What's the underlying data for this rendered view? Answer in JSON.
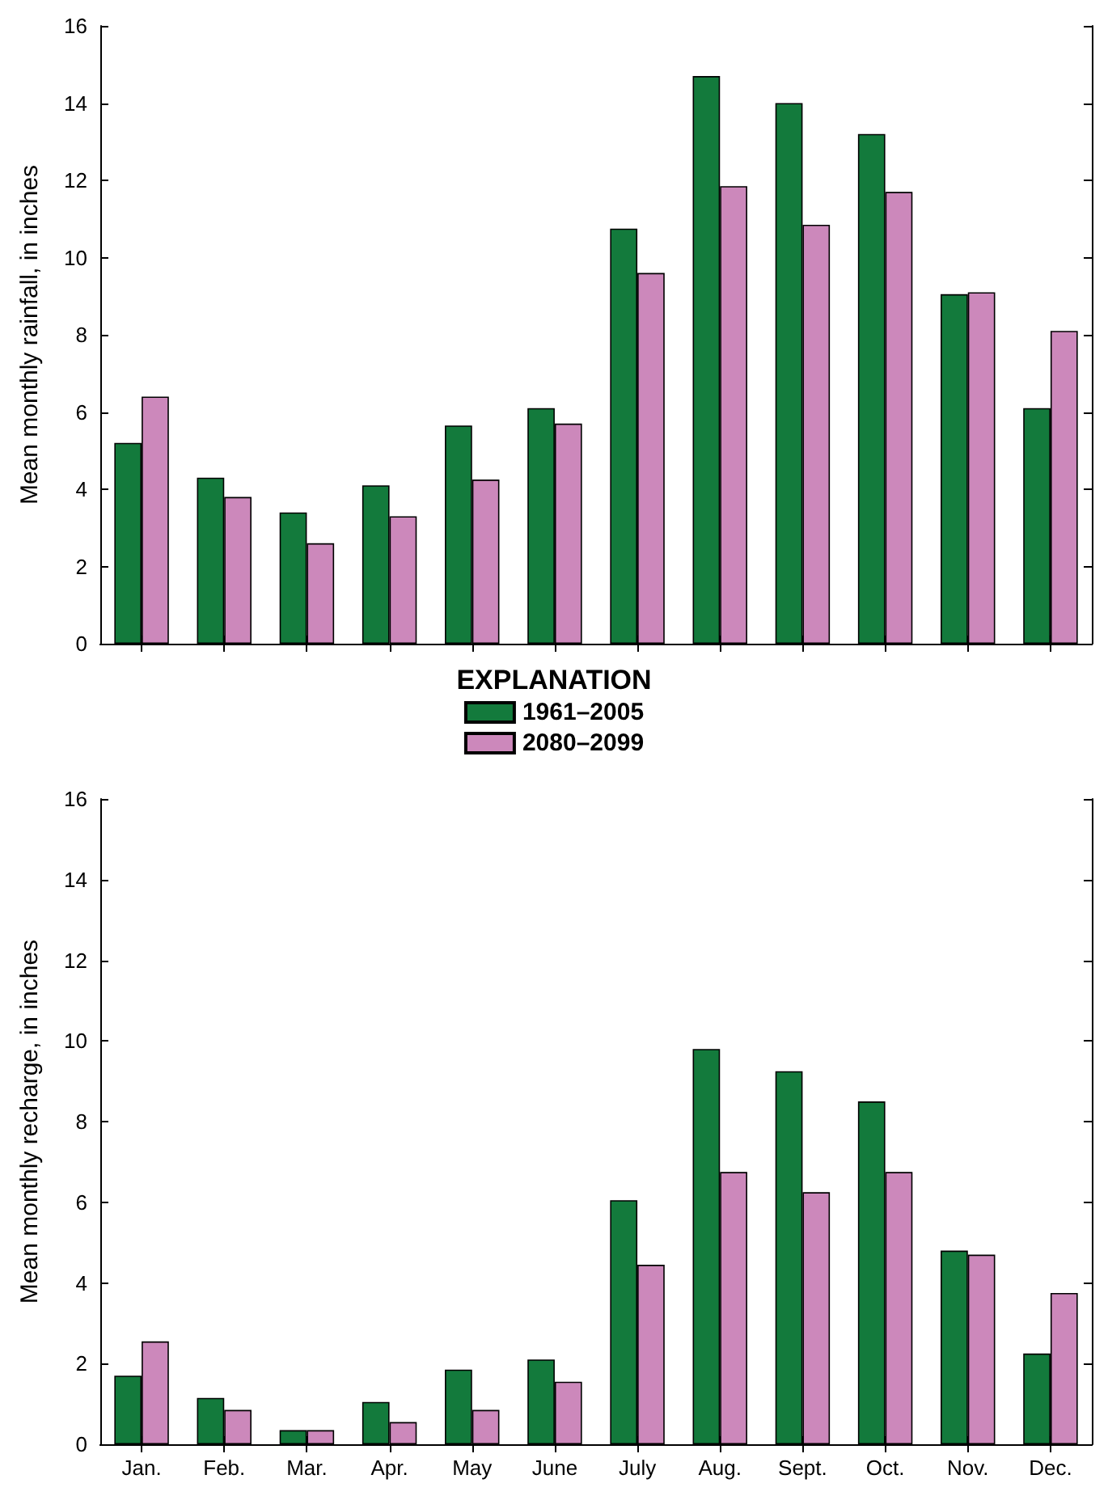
{
  "chart_data": [
    {
      "type": "bar",
      "ylabel": "Mean monthly rainfall, in inches",
      "legend_title": "EXPLANATION",
      "legend": "bottom",
      "tick_labels": "y",
      "categories": [
        null,
        null,
        null,
        null,
        null,
        null,
        null,
        null,
        null,
        null,
        null,
        null
      ],
      "ylim": [
        0,
        16
      ],
      "yticks": [
        0,
        2,
        4,
        6,
        8,
        10,
        12,
        14,
        16
      ],
      "series": [
        {
          "name": "1961–2005",
          "color": "#137a3c",
          "values": [
            5.2,
            4.3,
            3.4,
            4.1,
            5.65,
            6.1,
            10.75,
            14.7,
            14.0,
            13.2,
            9.05,
            6.1
          ]
        },
        {
          "name": "2080–2099",
          "color": "#cc88bb",
          "values": [
            6.4,
            3.8,
            2.6,
            3.3,
            4.25,
            5.7,
            9.6,
            11.85,
            10.85,
            11.7,
            9.1,
            8.1
          ]
        }
      ]
    },
    {
      "type": "bar",
      "ylabel": "Mean monthly recharge, in inches",
      "categories": [
        "Jan.",
        "Feb.",
        "Mar.",
        "Apr.",
        "May",
        "June",
        "July",
        "Aug.",
        "Sept.",
        "Oct.",
        "Nov.",
        "Dec."
      ],
      "ylim": [
        0,
        16
      ],
      "yticks": [
        0,
        2,
        4,
        6,
        8,
        10,
        12,
        14,
        16
      ],
      "series": [
        {
          "color": "#137a3c",
          "values": [
            1.7,
            1.15,
            0.35,
            1.05,
            1.85,
            2.1,
            6.05,
            9.8,
            9.25,
            8.5,
            4.8,
            2.25
          ]
        },
        {
          "color": "#cc88bb",
          "values": [
            2.55,
            0.85,
            0.35,
            0.55,
            0.85,
            1.55,
            4.45,
            6.75,
            6.25,
            6.75,
            4.7,
            3.75
          ]
        }
      ]
    }
  ]
}
